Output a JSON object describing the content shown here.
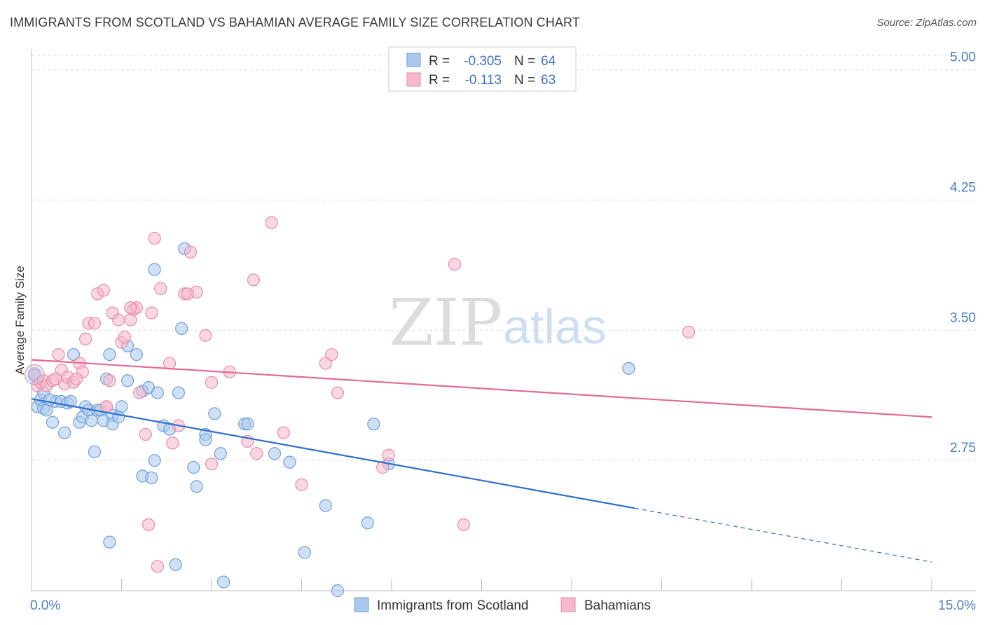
{
  "header": {
    "title": "IMMIGRANTS FROM SCOTLAND VS BAHAMIAN AVERAGE FAMILY SIZE CORRELATION CHART",
    "source": "Source: ZipAtlas.com"
  },
  "watermark": {
    "zip": "ZIP",
    "atlas": "atlas"
  },
  "colors": {
    "blue_fill": "#a9c8ee",
    "blue_stroke": "#6f9fd8",
    "blue_line": "#2f6fcc",
    "pink_fill": "#f6b8cb",
    "pink_stroke": "#e98aa8",
    "pink_line": "#e46b92",
    "tick_text": "#4a7cc9",
    "grid": "#dddddd"
  },
  "legend_box": {
    "rows": [
      {
        "r_label": "R =",
        "r_value": "-0.305",
        "n_label": "N =",
        "n_value": "64"
      },
      {
        "r_label": "R =",
        "r_value": "-0.113",
        "n_label": "N =",
        "n_value": "63"
      }
    ]
  },
  "chart_data": {
    "type": "scatter",
    "title": "IMMIGRANTS FROM SCOTLAND VS BAHAMIAN AVERAGE FAMILY SIZE CORRELATION CHART",
    "xlabel": "",
    "ylabel": "Average Family Size",
    "xlim": [
      0.0,
      15.0
    ],
    "ylim": [
      2.0,
      5.12
    ],
    "x_tick_labels": [
      "0.0%",
      "15.0%"
    ],
    "y_ticks": [
      2.75,
      3.5,
      4.25,
      5.0
    ],
    "y_tick_labels": [
      "2.75",
      "3.50",
      "4.25",
      "5.00"
    ],
    "grid": "horizontal dashed",
    "legend_position": "top-center and bottom",
    "series": [
      {
        "name": "Immigrants from Scotland",
        "color": "#a9c8ee",
        "points": [
          [
            0.05,
            3.24
          ],
          [
            0.1,
            3.06
          ],
          [
            0.15,
            3.1
          ],
          [
            0.2,
            3.05
          ],
          [
            0.25,
            3.04
          ],
          [
            0.35,
            2.97
          ],
          [
            0.4,
            3.09
          ],
          [
            0.5,
            3.09
          ],
          [
            0.55,
            2.91
          ],
          [
            0.6,
            3.08
          ],
          [
            0.7,
            3.36
          ],
          [
            0.8,
            2.97
          ],
          [
            0.85,
            3.0
          ],
          [
            0.9,
            3.06
          ],
          [
            0.95,
            3.04
          ],
          [
            1.0,
            2.98
          ],
          [
            1.1,
            3.04
          ],
          [
            1.15,
            3.04
          ],
          [
            1.2,
            2.98
          ],
          [
            1.3,
            3.36
          ],
          [
            1.35,
            3.01
          ],
          [
            1.5,
            3.06
          ],
          [
            1.6,
            3.41
          ],
          [
            1.75,
            3.36
          ],
          [
            1.85,
            3.15
          ],
          [
            1.95,
            3.17
          ],
          [
            2.05,
            3.85
          ],
          [
            2.2,
            2.95
          ],
          [
            2.3,
            2.93
          ],
          [
            2.5,
            3.51
          ],
          [
            2.55,
            3.97
          ],
          [
            2.7,
            2.71
          ],
          [
            2.75,
            2.6
          ],
          [
            2.9,
            2.9
          ],
          [
            3.05,
            3.02
          ],
          [
            3.15,
            2.79
          ],
          [
            3.55,
            2.96
          ],
          [
            4.05,
            2.79
          ],
          [
            4.3,
            2.74
          ],
          [
            0.2,
            3.14
          ],
          [
            0.3,
            3.1
          ],
          [
            1.05,
            2.8
          ],
          [
            1.25,
            3.22
          ],
          [
            1.6,
            3.21
          ],
          [
            1.85,
            2.66
          ],
          [
            2.0,
            2.65
          ],
          [
            2.05,
            2.75
          ],
          [
            2.1,
            3.14
          ],
          [
            2.45,
            3.14
          ],
          [
            2.9,
            2.87
          ],
          [
            3.2,
            2.05
          ],
          [
            3.6,
            2.96
          ],
          [
            1.3,
            2.28
          ],
          [
            2.4,
            2.15
          ],
          [
            4.55,
            2.22
          ],
          [
            4.9,
            2.49
          ],
          [
            5.1,
            2.0
          ],
          [
            5.6,
            2.39
          ],
          [
            5.7,
            2.96
          ],
          [
            5.95,
            2.73
          ],
          [
            9.95,
            3.28
          ],
          [
            0.65,
            3.09
          ],
          [
            1.35,
            2.96
          ],
          [
            1.45,
            3.0
          ]
        ]
      },
      {
        "name": "Bahamians",
        "color": "#f6b8cb",
        "points": [
          [
            0.05,
            3.25
          ],
          [
            0.1,
            3.18
          ],
          [
            0.15,
            3.2
          ],
          [
            0.2,
            3.21
          ],
          [
            0.25,
            3.18
          ],
          [
            0.35,
            3.21
          ],
          [
            0.45,
            3.36
          ],
          [
            0.5,
            3.27
          ],
          [
            0.55,
            3.19
          ],
          [
            0.6,
            3.23
          ],
          [
            0.7,
            3.2
          ],
          [
            0.8,
            3.31
          ],
          [
            0.85,
            3.26
          ],
          [
            0.9,
            3.45
          ],
          [
            0.95,
            3.54
          ],
          [
            1.05,
            3.54
          ],
          [
            1.1,
            3.71
          ],
          [
            1.2,
            3.73
          ],
          [
            1.25,
            3.06
          ],
          [
            1.35,
            3.6
          ],
          [
            1.45,
            3.56
          ],
          [
            1.5,
            3.43
          ],
          [
            1.55,
            3.46
          ],
          [
            1.65,
            3.56
          ],
          [
            1.7,
            3.62
          ],
          [
            1.75,
            3.63
          ],
          [
            1.8,
            3.14
          ],
          [
            1.9,
            2.9
          ],
          [
            2.0,
            3.6
          ],
          [
            2.05,
            4.03
          ],
          [
            2.15,
            3.74
          ],
          [
            2.3,
            3.31
          ],
          [
            2.45,
            2.95
          ],
          [
            2.55,
            3.71
          ],
          [
            2.65,
            3.95
          ],
          [
            2.75,
            3.72
          ],
          [
            2.9,
            3.47
          ],
          [
            3.0,
            2.73
          ],
          [
            3.3,
            3.26
          ],
          [
            3.6,
            2.86
          ],
          [
            3.7,
            3.79
          ],
          [
            3.75,
            2.79
          ],
          [
            4.0,
            4.12
          ],
          [
            4.2,
            2.91
          ],
          [
            4.5,
            2.61
          ],
          [
            4.9,
            3.31
          ],
          [
            5.0,
            3.36
          ],
          [
            5.1,
            3.14
          ],
          [
            5.85,
            2.71
          ],
          [
            5.95,
            2.78
          ],
          [
            7.05,
            3.88
          ],
          [
            7.2,
            2.38
          ],
          [
            10.95,
            3.49
          ],
          [
            1.95,
            2.38
          ],
          [
            2.1,
            2.14
          ],
          [
            2.35,
            2.85
          ],
          [
            0.4,
            3.22
          ],
          [
            0.75,
            3.22
          ],
          [
            1.3,
            3.21
          ],
          [
            1.65,
            3.63
          ],
          [
            3.0,
            3.2
          ],
          [
            2.6,
            3.71
          ],
          [
            1.25,
            3.06
          ]
        ]
      }
    ],
    "trend_lines": [
      {
        "series": "Immigrants from Scotland",
        "x0": 0.0,
        "y0": 3.105,
        "x1": 10.05,
        "y1": 2.475,
        "dashed_extension": {
          "x1": 15.0,
          "y1": 2.165
        }
      },
      {
        "series": "Bahamians",
        "x0": 0.0,
        "y0": 3.33,
        "x1": 15.0,
        "y1": 3.0
      }
    ]
  },
  "bottom_legend": {
    "items": [
      {
        "label": "Immigrants from Scotland"
      },
      {
        "label": "Bahamians"
      }
    ]
  }
}
